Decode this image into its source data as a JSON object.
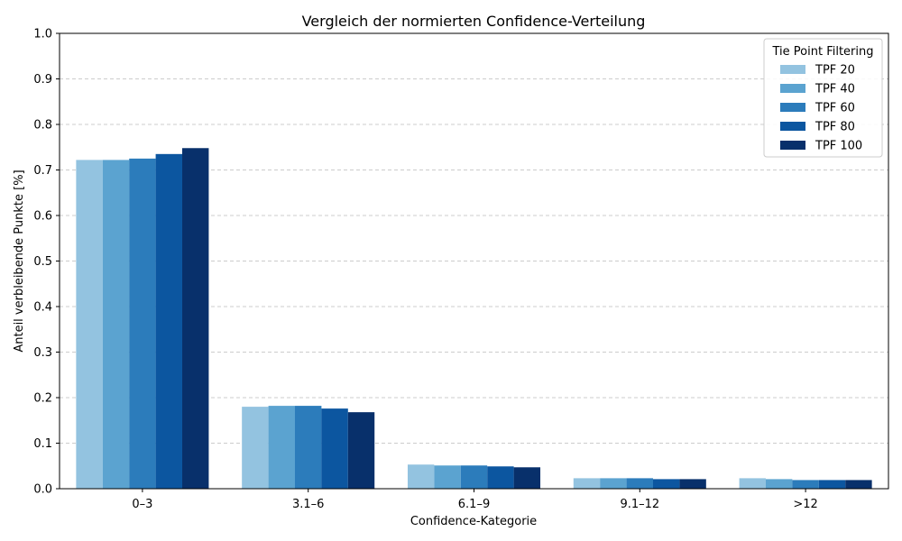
{
  "chart_data": {
    "type": "bar",
    "title": "Vergleich der normierten Confidence-Verteilung",
    "xlabel": "Confidence-Kategorie",
    "ylabel": "Anteil verbleibende Punkte [%]",
    "ylim": [
      0,
      1.0
    ],
    "yticks": [
      "0.0",
      "0.1",
      "0.2",
      "0.3",
      "0.4",
      "0.5",
      "0.6",
      "0.7",
      "0.8",
      "0.9",
      "1.0"
    ],
    "grid": "y-dashed",
    "categories": [
      "0–3",
      "3.1–6",
      "6.1–9",
      "9.1–12",
      ">12"
    ],
    "legend": {
      "title": "Tie Point Filtering",
      "placement": "top-right"
    },
    "series": [
      {
        "name": "TPF 20",
        "color": "#93c3e0",
        "values": [
          0.722,
          0.18,
          0.053,
          0.023,
          0.023
        ]
      },
      {
        "name": "TPF 40",
        "color": "#5ba3d0",
        "values": [
          0.722,
          0.182,
          0.051,
          0.023,
          0.021
        ]
      },
      {
        "name": "TPF 60",
        "color": "#2c7cbb",
        "values": [
          0.725,
          0.182,
          0.051,
          0.023,
          0.019
        ]
      },
      {
        "name": "TPF 80",
        "color": "#0c56a0",
        "values": [
          0.735,
          0.176,
          0.049,
          0.021,
          0.019
        ]
      },
      {
        "name": "TPF 100",
        "color": "#08306b",
        "values": [
          0.748,
          0.168,
          0.047,
          0.021,
          0.019
        ]
      }
    ]
  }
}
